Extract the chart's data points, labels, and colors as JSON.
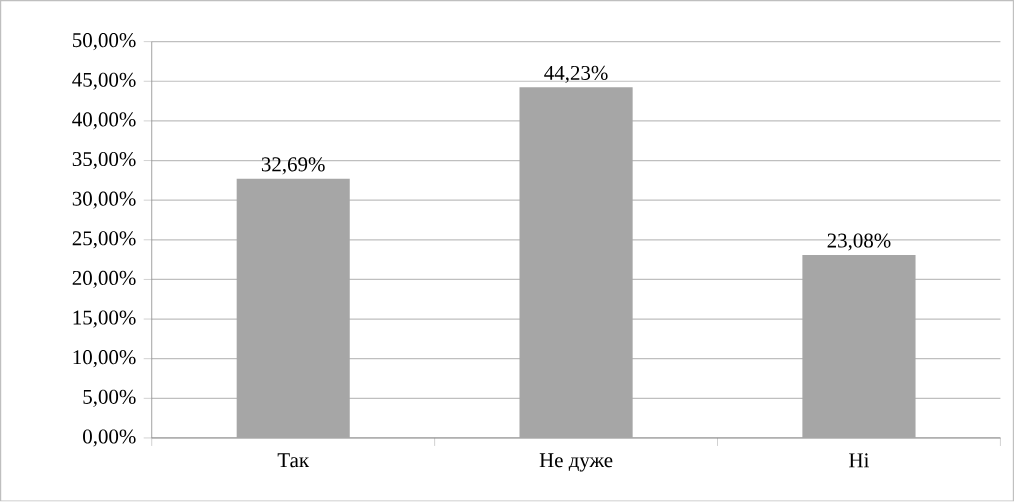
{
  "chart_data": {
    "type": "bar",
    "categories": [
      "Так",
      "Не дуже",
      "Ні"
    ],
    "values": [
      32.69,
      44.23,
      23.08
    ],
    "value_labels": [
      "32,69%",
      "44,23%",
      "23,08%"
    ],
    "color": "#a6a6a6",
    "ylim": [
      0,
      50
    ],
    "yticks": [
      {
        "value": 0,
        "label": "0,00%"
      },
      {
        "value": 5,
        "label": "5,00%"
      },
      {
        "value": 10,
        "label": "10,00%"
      },
      {
        "value": 15,
        "label": "15,00%"
      },
      {
        "value": 20,
        "label": "20,00%"
      },
      {
        "value": 25,
        "label": "25,00%"
      },
      {
        "value": 30,
        "label": "30,00%"
      },
      {
        "value": 35,
        "label": "35,00%"
      },
      {
        "value": 40,
        "label": "40,00%"
      },
      {
        "value": 45,
        "label": "45,00%"
      },
      {
        "value": 50,
        "label": "50,00%"
      }
    ],
    "grid": "y"
  }
}
